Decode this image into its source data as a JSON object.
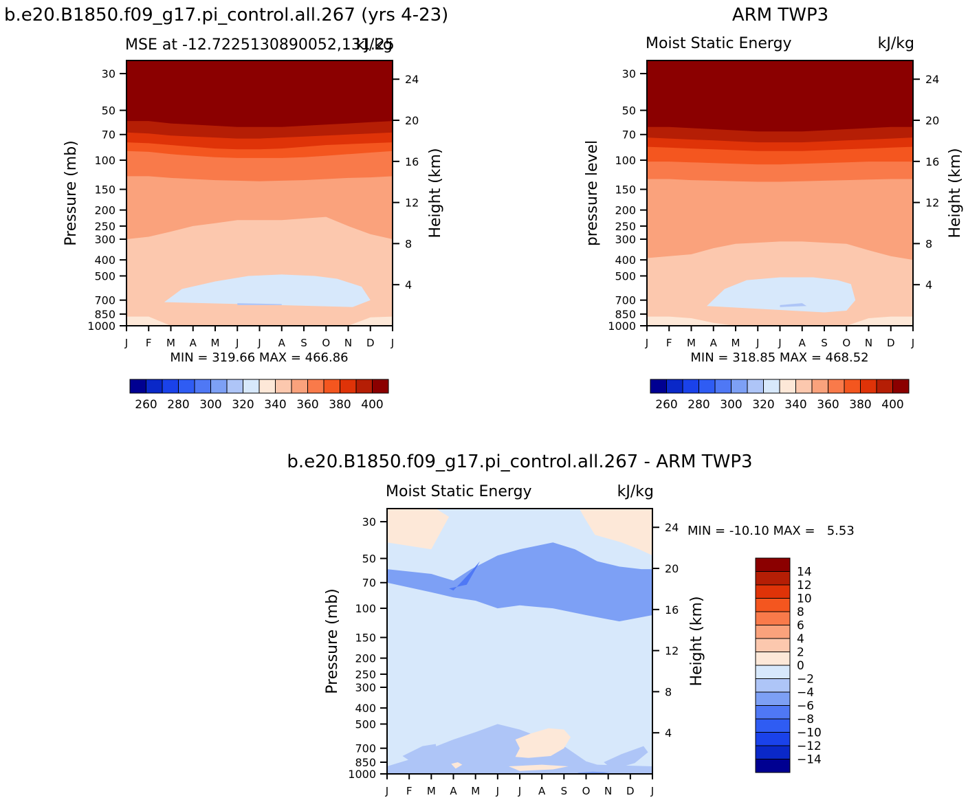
{
  "header": {
    "case_title": "b.e20.B1850.f09_g17.pi_control.all.267 (yrs 4-23)",
    "obs_title": "ARM TWP3",
    "diff_title": "b.e20.B1850.f09_g17.pi_control.all.267 - ARM TWP3"
  },
  "colors": {
    "full_palette": [
      "#000091",
      "#0a28c8",
      "#1a42ea",
      "#2f5cf3",
      "#4f78f5",
      "#7da0f5",
      "#aec5f7",
      "#d7e8fb",
      "#fde8d8",
      "#fcc8ae",
      "#faa27c",
      "#f97a4a",
      "#f4561f",
      "#df3308",
      "#b51e05",
      "#8b0000"
    ],
    "diff_palette": [
      "#000091",
      "#0a28c8",
      "#1a42ea",
      "#2f5cf3",
      "#4f78f5",
      "#7da0f5",
      "#aec5f7",
      "#d7e8fb",
      "#fde8d8",
      "#fcc8ae",
      "#faa27c",
      "#f97a4a",
      "#f4561f",
      "#df3308",
      "#b51e05",
      "#8b0000"
    ]
  },
  "chart_data": [
    {
      "type": "heatmap",
      "name": "model",
      "title_left": "MSE at -12.7225130890052,131.25",
      "title_right": "kJ/kg",
      "ylabel": "Pressure (mb)",
      "ylabel_right": "Height (km)",
      "stats": "MIN = 319.66 MAX = 466.86",
      "months": [
        "J",
        "F",
        "M",
        "A",
        "M",
        "J",
        "J",
        "A",
        "S",
        "O",
        "N",
        "D",
        "J"
      ],
      "pressure_ticks": [
        30,
        50,
        70,
        100,
        150,
        200,
        250,
        300,
        400,
        500,
        700,
        850,
        1000
      ],
      "height_ticks": [
        24,
        20,
        16,
        12,
        8,
        4
      ],
      "levels": [
        250,
        260,
        270,
        280,
        290,
        300,
        310,
        320,
        330,
        340,
        350,
        360,
        370,
        380,
        390,
        400
      ],
      "colorbar_labels": [
        260,
        280,
        300,
        320,
        340,
        360,
        380,
        400
      ],
      "boundaries": [
        {
          "level": 1,
          "p": [
            620,
            640,
            670,
            700,
            720,
            740,
            745,
            740,
            720,
            700,
            680,
            650,
            620
          ]
        },
        {
          "level": 2,
          "p": [
            880,
            880,
            1000,
            1000,
            1000,
            1000,
            1000,
            1000,
            1000,
            1000,
            1000,
            890,
            880
          ]
        },
        {
          "level": 3,
          "p": [
            300,
            290,
            270,
            250,
            240,
            230,
            230,
            230,
            225,
            220,
            250,
            280,
            300
          ]
        },
        {
          "level": 4,
          "p": [
            125,
            125,
            128,
            130,
            132,
            133,
            134,
            133,
            132,
            130,
            128,
            127,
            125
          ]
        },
        {
          "level": 5,
          "p": [
            88,
            89,
            92,
            94,
            96,
            97,
            97,
            97,
            96,
            94,
            92,
            90,
            88
          ]
        },
        {
          "level": 6,
          "p": [
            78,
            79,
            81,
            83,
            85,
            86,
            86,
            85,
            83,
            81,
            80,
            79,
            78
          ]
        },
        {
          "level": 7,
          "p": [
            68,
            69,
            71,
            72,
            73,
            74,
            74,
            73,
            72,
            71,
            70,
            69,
            68
          ]
        },
        {
          "level": 8,
          "p": [
            58,
            58,
            60,
            61,
            62,
            63,
            63,
            63,
            62,
            61,
            60,
            59,
            58
          ]
        }
      ],
      "lobes": [
        {
          "level": 0,
          "months": [
            1.7,
            2.5,
            4,
            5.5,
            7,
            8.5,
            9.5,
            10.6,
            11.0,
            10.2
          ],
          "p": [
            720,
            600,
            540,
            500,
            490,
            500,
            520,
            580,
            700,
            770
          ]
        },
        {
          "level": -1,
          "months": [
            5.0,
            7.0,
            7.0,
            5.0
          ],
          "p": [
            730,
            740,
            750,
            750
          ]
        }
      ]
    },
    {
      "type": "heatmap",
      "name": "observations",
      "title_left": "Moist Static Energy",
      "title_right": "kJ/kg",
      "ylabel": "pressure level",
      "ylabel_right": "Height (km)",
      "stats": "MIN = 318.85 MAX = 468.52",
      "months": [
        "J",
        "F",
        "M",
        "A",
        "M",
        "J",
        "J",
        "A",
        "S",
        "O",
        "N",
        "D",
        "J"
      ],
      "pressure_ticks": [
        30,
        50,
        70,
        100,
        150,
        200,
        250,
        300,
        400,
        500,
        700,
        850,
        1000
      ],
      "height_ticks": [
        24,
        20,
        16,
        12,
        8,
        4
      ],
      "levels": [
        250,
        260,
        270,
        280,
        290,
        300,
        310,
        320,
        330,
        340,
        350,
        360,
        370,
        380,
        390,
        400
      ],
      "colorbar_labels": [
        260,
        280,
        300,
        320,
        340,
        360,
        380,
        400
      ],
      "boundaries": [
        {
          "level": 1,
          "p": [
            880,
            880,
            900,
            960,
            1000,
            1000,
            1000,
            1000,
            1000,
            1000,
            900,
            880,
            880
          ]
        },
        {
          "level": 2,
          "p": [
            390,
            380,
            370,
            340,
            320,
            315,
            310,
            310,
            315,
            320,
            350,
            380,
            400
          ]
        },
        {
          "level": 3,
          "p": [
            130,
            130,
            132,
            133,
            134,
            135,
            135,
            134,
            133,
            132,
            131,
            130,
            130
          ]
        },
        {
          "level": 4,
          "p": [
            102,
            102,
            103,
            104,
            105,
            106,
            106,
            105,
            104,
            103,
            102,
            102,
            102
          ]
        },
        {
          "level": 5,
          "p": [
            83,
            84,
            85,
            86,
            87,
            88,
            88,
            88,
            87,
            86,
            85,
            84,
            83
          ]
        },
        {
          "level": 6,
          "p": [
            73,
            74,
            75,
            76,
            77,
            78,
            78,
            78,
            77,
            76,
            75,
            74,
            73
          ]
        },
        {
          "level": 7,
          "p": [
            63,
            63,
            64,
            65,
            66,
            67,
            67,
            67,
            66,
            65,
            64,
            63,
            63
          ]
        }
      ],
      "lobes": [
        {
          "level": 0,
          "months": [
            2.7,
            3.5,
            4.5,
            6.0,
            7.5,
            8.6,
            9.2,
            9.4,
            9.0,
            8.0
          ],
          "p": [
            760,
            600,
            530,
            510,
            510,
            530,
            560,
            700,
            810,
            830
          ]
        },
        {
          "level": -1,
          "months": [
            6.0,
            7.0,
            7.2,
            6.0
          ],
          "p": [
            750,
            730,
            760,
            770
          ]
        }
      ]
    },
    {
      "type": "heatmap",
      "name": "difference",
      "title_left": "Moist Static Energy",
      "title_right": "kJ/kg",
      "ylabel": "Pressure (mb)",
      "ylabel_right": "Height (km)",
      "stats": "MIN = -10.10 MAX =   5.53",
      "months": [
        "J",
        "F",
        "M",
        "A",
        "M",
        "J",
        "J",
        "A",
        "S",
        "O",
        "N",
        "D",
        "J"
      ],
      "pressure_ticks": [
        30,
        50,
        70,
        100,
        150,
        200,
        250,
        300,
        400,
        500,
        700,
        850,
        1000
      ],
      "height_ticks": [
        24,
        20,
        16,
        12,
        8,
        4
      ],
      "levels": [
        -16,
        -14,
        -12,
        -10,
        -8,
        -6,
        -4,
        -2,
        0,
        2,
        4,
        6,
        8,
        10,
        12,
        14
      ],
      "colorbar_labels": [
        14,
        12,
        10,
        8,
        6,
        4,
        2,
        0,
        -2,
        -4,
        -6,
        -8,
        -10,
        -12,
        -14
      ],
      "bands": [
        {
          "level": 9,
          "p_top": 25,
          "p_bottom": 1000
        },
        {
          "level": 8,
          "p_top": 25,
          "p_bottom": 1000
        },
        {
          "level": 7,
          "p_top": 25,
          "p_bottom": 1000
        },
        {
          "level": 6,
          "p_top": 25,
          "p_bottom": 1000
        }
      ],
      "regions": [
        {
          "level": 7,
          "months": [
            0,
            1.2,
            2.2,
            2.9,
            3.5,
            4.5,
            6.5,
            8.3,
            9.0,
            10.0,
            11.0,
            12,
            12,
            9.5,
            9.0,
            8.0,
            6.0,
            5.0,
            4.0,
            3.0,
            2.0,
            1.0,
            0
          ],
          "p": [
            25,
            25,
            25,
            25,
            25,
            25,
            25,
            25,
            25,
            25,
            25,
            25,
            900,
            880,
            840,
            680,
            540,
            500,
            560,
            620,
            700,
            820,
            900
          ]
        },
        {
          "level": 5,
          "months": [
            0,
            2.0,
            3.0,
            3.8,
            5.0,
            6.0,
            7.5,
            8.5,
            9.5,
            10.5,
            11.5,
            12,
            12,
            10.5,
            9.0,
            7.5,
            6.0,
            5.0,
            4.0,
            3.0,
            2.0,
            0
          ],
          "p": [
            58,
            62,
            68,
            58,
            48,
            44,
            40,
            44,
            52,
            56,
            58,
            58,
            110,
            120,
            110,
            100,
            96,
            100,
            90,
            86,
            80,
            70
          ]
        },
        {
          "level": 4,
          "months": [
            2.8,
            3.6,
            4.1,
            4.2,
            3.8,
            3.0
          ],
          "p": [
            76,
            72,
            55,
            52,
            60,
            78
          ]
        },
        {
          "level": 8,
          "months": [
            0,
            0.6,
            1.3,
            2.2,
            2.8,
            2.0,
            1.0,
            0
          ],
          "p": [
            25,
            25,
            25,
            25,
            28,
            44,
            42,
            40
          ]
        },
        {
          "level": 8,
          "months": [
            8.7,
            9.3,
            10.4,
            11.4,
            12,
            12,
            11.4,
            10.6,
            9.4,
            8.9
          ],
          "p": [
            25,
            25,
            25,
            25,
            25,
            48,
            44,
            40,
            36,
            28
          ]
        },
        {
          "level": 8,
          "months": [
            5.8,
            6.5,
            7.3,
            8.0,
            8.3,
            8.0,
            7.4,
            6.4,
            5.8,
            6.0
          ],
          "p": [
            620,
            570,
            530,
            540,
            600,
            700,
            780,
            800,
            790,
            700
          ]
        },
        {
          "level": 8,
          "months": [
            5.5,
            7.0,
            8.2,
            7.5,
            6.0
          ],
          "p": [
            900,
            880,
            900,
            940,
            960
          ]
        },
        {
          "level": 8,
          "months": [
            2.9,
            3.2,
            3.4,
            3.1
          ],
          "p": [
            870,
            850,
            880,
            930
          ]
        },
        {
          "level": 6,
          "months": [
            0.7,
            1.6,
            2.2,
            2.3,
            1.8,
            1.0
          ],
          "p": [
            780,
            680,
            660,
            800,
            860,
            830
          ]
        },
        {
          "level": 6,
          "months": [
            9.8,
            10.6,
            11.6,
            11.8,
            11.2,
            10.2
          ],
          "p": [
            850,
            760,
            680,
            740,
            860,
            940
          ]
        },
        {
          "level": 6,
          "months": [
            8.0,
            9.0,
            10.0,
            11.0,
            10.0,
            9.0
          ],
          "p": [
            990,
            960,
            960,
            990,
            1000,
            1000
          ]
        },
        {
          "level": 5,
          "months": [
            8.6,
            9.3,
            10.1,
            9.5,
            8.8
          ],
          "p": [
            985,
            970,
            980,
            1000,
            1000
          ]
        }
      ]
    }
  ]
}
